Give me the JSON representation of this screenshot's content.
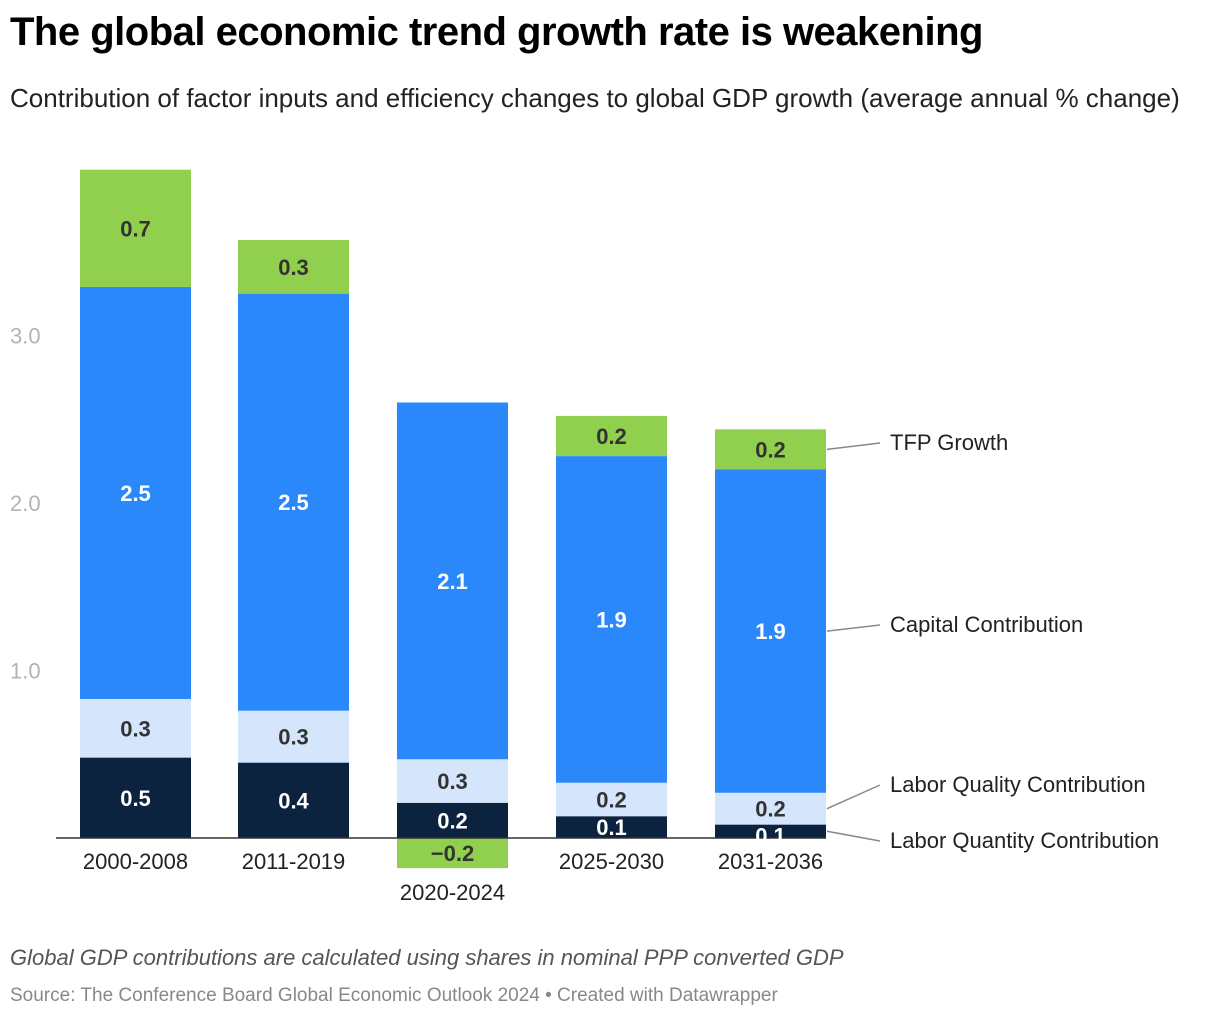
{
  "header": {
    "title": "The global economic trend growth rate is weakening",
    "subtitle": "Contribution of factor inputs and efficiency changes to global GDP growth (average annual % change)"
  },
  "footer": {
    "note": "Global GDP contributions are calculated using shares in nominal PPP converted GDP",
    "source": "Source: The Conference Board Global Economic Outlook 2024 • Created with Datawrapper"
  },
  "chart_data": {
    "type": "bar",
    "stacked": true,
    "categories": [
      "2000-2008",
      "2011-2019",
      "2020-2024",
      "2025-2030",
      "2031-2036"
    ],
    "series": [
      {
        "name": "Labor Quantity Contribution",
        "color": "#0c2340",
        "values": [
          0.48,
          0.45,
          0.21,
          0.13,
          0.08
        ],
        "labels": [
          "0.5",
          "0.4",
          "0.2",
          "0.1",
          "0.1"
        ],
        "label_color": "#ffffff"
      },
      {
        "name": "Labor Quality Contribution",
        "color": "#d4e5fc",
        "values": [
          0.35,
          0.31,
          0.26,
          0.2,
          0.19
        ],
        "labels": [
          "0.3",
          "0.3",
          "0.3",
          "0.2",
          "0.2"
        ],
        "label_color": "#333333"
      },
      {
        "name": "Capital Contribution",
        "color": "#2a88fa",
        "values": [
          2.46,
          2.49,
          2.13,
          1.95,
          1.93
        ],
        "labels": [
          "2.5",
          "2.5",
          "2.1",
          "1.9",
          "1.9"
        ],
        "label_color": "#ffffff"
      },
      {
        "name": "TFP Growth",
        "color": "#91d04e",
        "values": [
          0.7,
          0.32,
          -0.18,
          0.24,
          0.24
        ],
        "labels": [
          "0.7",
          "0.3",
          "−0.2",
          "0.2",
          "0.2"
        ],
        "label_color": "#333333"
      }
    ],
    "yticks": [
      1.0,
      2.0,
      3.0
    ],
    "ytick_labels": [
      "1.0",
      "2.0",
      "3.0"
    ],
    "ylim": [
      -0.2,
      4.0
    ],
    "xlabel": "",
    "ylabel": "",
    "legend": "direct labels on right"
  }
}
